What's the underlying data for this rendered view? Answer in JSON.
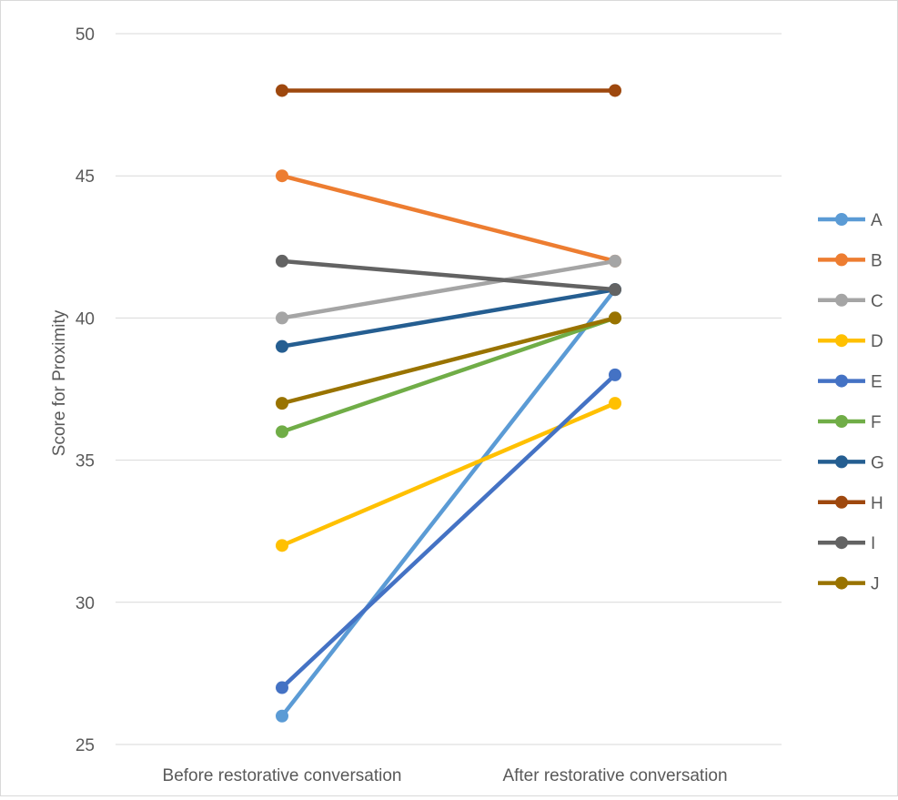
{
  "chart_data": {
    "type": "line",
    "title": "",
    "xlabel": "",
    "ylabel": "Score for Proximity",
    "categories": [
      "Before restorative conversation",
      "After restorative conversation"
    ],
    "ylim": [
      25,
      50
    ],
    "yticks": [
      25,
      30,
      35,
      40,
      45,
      50
    ],
    "grid": true,
    "legend": "right",
    "series": [
      {
        "name": "A",
        "color": "#5B9BD5",
        "values": [
          26,
          41
        ]
      },
      {
        "name": "B",
        "color": "#ED7D31",
        "values": [
          45,
          42
        ]
      },
      {
        "name": "C",
        "color": "#A5A5A5",
        "values": [
          40,
          42
        ]
      },
      {
        "name": "D",
        "color": "#FFC000",
        "values": [
          32,
          37
        ]
      },
      {
        "name": "E",
        "color": "#4472C4",
        "values": [
          27,
          38
        ]
      },
      {
        "name": "F",
        "color": "#70AD47",
        "values": [
          36,
          40
        ]
      },
      {
        "name": "G",
        "color": "#255E91",
        "values": [
          39,
          41
        ]
      },
      {
        "name": "H",
        "color": "#9E480E",
        "values": [
          48,
          48
        ]
      },
      {
        "name": "I",
        "color": "#636363",
        "values": [
          42,
          41
        ]
      },
      {
        "name": "J",
        "color": "#997300",
        "values": [
          37,
          40
        ]
      }
    ]
  }
}
